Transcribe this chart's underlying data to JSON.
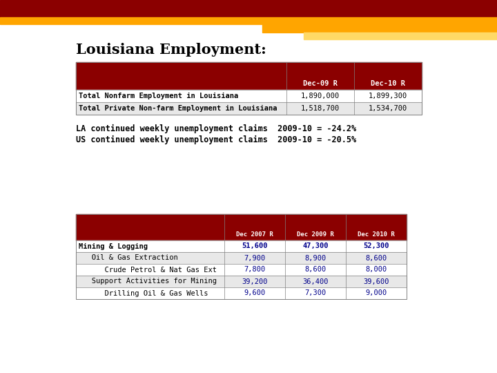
{
  "title": "Louisiana Employment:",
  "title_fontsize": 15,
  "header_bg": "#8B0000",
  "top_bar_color": "#8B0000",
  "gold_bar_color": "#FFA500",
  "gold_bar2_color": "#FFD966",
  "row_bg_light": "#E8E8E8",
  "row_bg_white": "#FFFFFF",
  "data_color": "#00008B",
  "table1_cols": [
    "",
    "Dec-09 R",
    "Dec-10 R"
  ],
  "table1_rows": [
    [
      "Total Nonfarm Employment in Louisiana",
      "1,890,000",
      "1,899,300"
    ],
    [
      "Total Private Non-farm Employment in Louisiana",
      "1,518,700",
      "1,534,700"
    ]
  ],
  "note1": "LA continued weekly unemployment claims  2009-10 = -24.2%",
  "note2": "US continued weekly unemployment claims  2009-10 = -20.5%",
  "table2_cols": [
    "",
    "Dec 2007 R",
    "Dec 2009 R",
    "Dec 2010 R"
  ],
  "table2_rows": [
    [
      "Mining & Logging",
      "51,600",
      "47,300",
      "52,300"
    ],
    [
      "   Oil & Gas Extraction",
      "7,900",
      "8,900",
      "8,600"
    ],
    [
      "      Crude Petrol & Nat Gas Ext",
      "7,800",
      "8,600",
      "8,000"
    ],
    [
      "   Support Activities for Mining",
      "39,200",
      "36,400",
      "39,600"
    ],
    [
      "      Drilling Oil & Gas Wells",
      "9,600",
      "7,300",
      "9,000"
    ]
  ],
  "table2_row_styles": [
    "bold",
    "normal",
    "normal",
    "normal",
    "normal"
  ],
  "table2_row_bg": [
    "#FFFFFF",
    "#E8E8E8",
    "#FFFFFF",
    "#E8E8E8",
    "#FFFFFF"
  ]
}
